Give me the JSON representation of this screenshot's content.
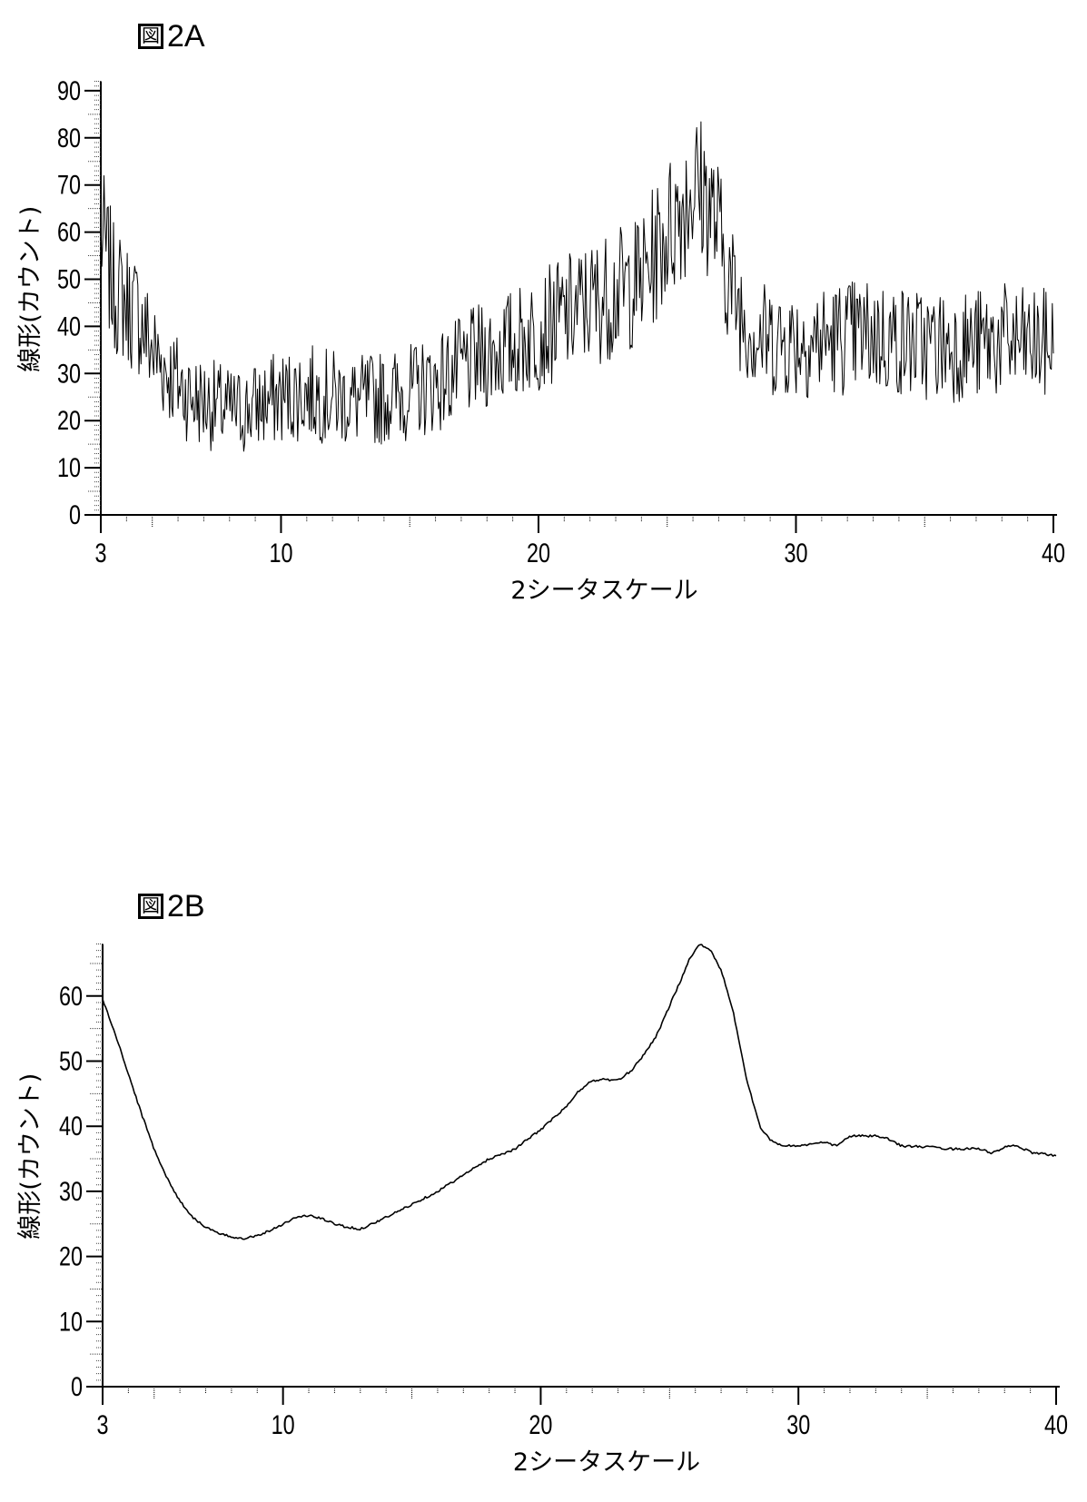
{
  "figures": [
    {
      "id": "2A",
      "title_prefix": "図",
      "title_label": "2A",
      "title": "図2A",
      "xlabel": "2シータスケール",
      "ylabel": "線形(カウント)"
    },
    {
      "id": "2B",
      "title_prefix": "図",
      "title_label": "2B",
      "title": "図2B",
      "xlabel": "2シータスケール",
      "ylabel": "線形(カウント)"
    }
  ],
  "chart_data": [
    {
      "type": "line",
      "title": "図2A",
      "xlabel": "2シータスケール",
      "ylabel": "線形(カウント)",
      "xlim": [
        3,
        40
      ],
      "ylim": [
        0,
        92
      ],
      "xticks": [
        3,
        10,
        20,
        30,
        40
      ],
      "yticks": [
        0,
        10,
        20,
        30,
        40,
        50,
        60,
        70,
        80,
        90
      ],
      "grid": false,
      "legend": null,
      "line_color": "#000000",
      "noisy": true,
      "noise_amplitude": 12,
      "x": [
        3,
        3.5,
        4,
        4.5,
        5,
        5.5,
        6,
        6.5,
        7,
        7.5,
        8,
        8.5,
        9,
        9.5,
        10,
        11,
        12,
        13,
        14,
        15,
        16,
        17,
        18,
        19,
        20,
        21,
        22,
        23,
        24,
        24.5,
        25,
        25.5,
        26,
        26.5,
        27,
        27.5,
        28,
        28.5,
        29,
        30,
        31,
        32,
        33,
        34,
        35,
        36,
        37,
        38,
        39,
        40
      ],
      "y": [
        60,
        48,
        45,
        42,
        35,
        31,
        28,
        25,
        24,
        23,
        22,
        22,
        23,
        24,
        25,
        26,
        25,
        24,
        25,
        26,
        28,
        31,
        34,
        36,
        39,
        42,
        45,
        47,
        50,
        55,
        60,
        65,
        70,
        68,
        60,
        48,
        42,
        38,
        37,
        37,
        37,
        38,
        38,
        37,
        36,
        36,
        36,
        37,
        36,
        36
      ]
    },
    {
      "type": "line",
      "title": "図2B",
      "xlabel": "2シータスケール",
      "ylabel": "線形(カウント)",
      "xlim": [
        3,
        40
      ],
      "ylim": [
        0,
        68
      ],
      "xticks": [
        3,
        10,
        20,
        30,
        40
      ],
      "yticks": [
        0,
        10,
        20,
        30,
        40,
        50,
        60
      ],
      "grid": false,
      "legend": null,
      "line_color": "#000000",
      "noisy": false,
      "x": [
        3,
        3.5,
        4,
        4.5,
        5,
        5.5,
        6,
        6.5,
        7,
        7.5,
        8,
        8.5,
        9,
        9.5,
        10,
        10.5,
        11,
        11.5,
        12,
        12.5,
        13,
        14,
        15,
        16,
        17,
        18,
        19,
        20,
        21,
        21.5,
        22,
        22.5,
        23,
        23.5,
        24,
        24.5,
        25,
        25.5,
        25.8,
        26.2,
        26.6,
        27,
        27.5,
        28,
        28.5,
        29,
        29.5,
        30,
        31,
        31.5,
        32,
        33,
        33.5,
        34,
        35,
        36,
        37,
        37.5,
        38,
        38.5,
        39,
        40
      ],
      "y": [
        59.5,
        54,
        48,
        42,
        36.5,
        32,
        28.5,
        26,
        24.5,
        23.5,
        23,
        22.8,
        23.2,
        24,
        25,
        26,
        26.3,
        25.8,
        25,
        24.5,
        24.2,
        26,
        28,
        30,
        32.5,
        35,
        36.5,
        39.5,
        43,
        45.5,
        47,
        47.2,
        47,
        48.5,
        51,
        54,
        58.5,
        63,
        66,
        68,
        67,
        64,
        57,
        47,
        40,
        37.5,
        37,
        37,
        37.5,
        37,
        38.5,
        38.5,
        38,
        37,
        36.8,
        36.5,
        36.6,
        35.8,
        36.8,
        37,
        36,
        35.5
      ]
    }
  ]
}
